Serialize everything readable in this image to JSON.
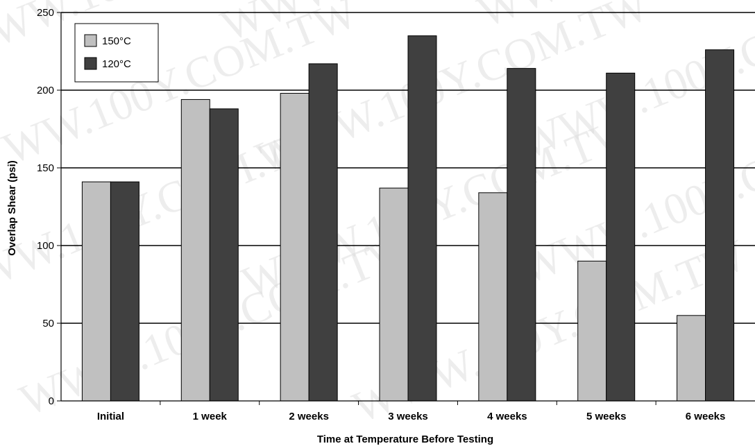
{
  "chart_data": {
    "type": "bar",
    "title": "",
    "xlabel": "Time at Temperature Before Testing",
    "ylabel": "Overlap Shear (psi)",
    "ylim": [
      0,
      250
    ],
    "yticks": [
      0,
      50,
      100,
      150,
      200,
      250
    ],
    "grid": true,
    "legend_position": "top-left",
    "categories": [
      "Initial",
      "1 week",
      "2 weeks",
      "3 weeks",
      "4 weeks",
      "5 weeks",
      "6 weeks"
    ],
    "series": [
      {
        "name": "150°C",
        "color": "#c0c0c0",
        "values": [
          141,
          194,
          198,
          137,
          134,
          90,
          55
        ]
      },
      {
        "name": "120°C",
        "color": "#404040",
        "values": [
          141,
          188,
          217,
          235,
          214,
          211,
          226
        ]
      }
    ]
  },
  "watermark_text": "WWW.100Y.COM.TW"
}
